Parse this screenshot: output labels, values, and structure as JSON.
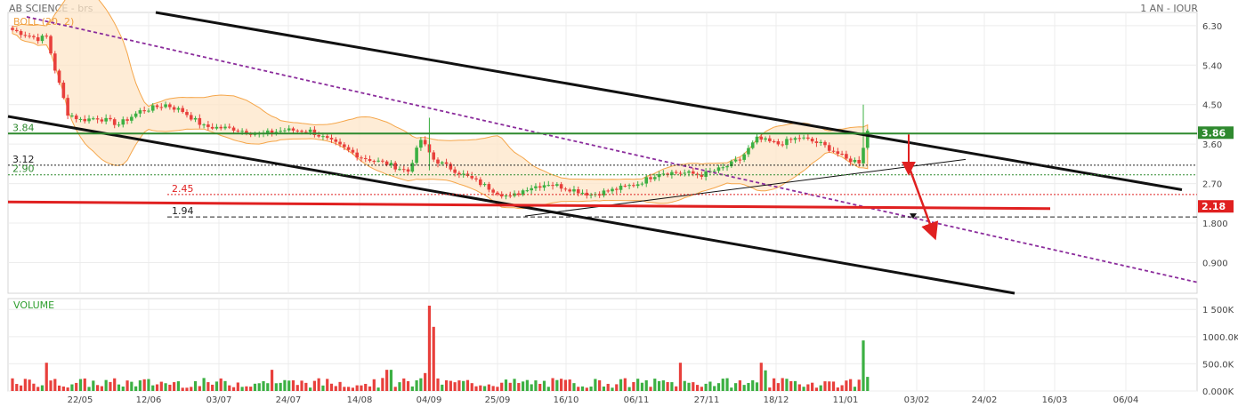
{
  "header": {
    "instrument": "AB SCIENCE - brs",
    "period": "1 AN - JOUR",
    "indicator": "BOLL (20, 2)"
  },
  "volume_label": "VOLUME",
  "colors": {
    "up": "#3cb043",
    "down": "#e8403c",
    "band_fill": "#fde6c8",
    "band_line": "#f5a64a",
    "resistance": "#2f8a2f",
    "support_red": "#e02020",
    "trend_purple": "#8b2c9c",
    "channel": "#111111"
  },
  "chart_data": [
    {
      "type": "candlestick",
      "title": "AB SCIENCE - brs",
      "x_ticks": [
        "22/05",
        "12/06",
        "03/07",
        "24/07",
        "14/08",
        "04/09",
        "25/09",
        "16/10",
        "06/11",
        "27/11",
        "18/12",
        "11/01",
        "03/02",
        "24/02",
        "16/03",
        "06/04"
      ],
      "y_ticks": [
        "6.30",
        "5.40",
        "4.50",
        "3.60",
        "2.70",
        "1.800",
        "0.900"
      ],
      "ylim": [
        0.2,
        6.6
      ],
      "price_tags": [
        {
          "value": 3.86,
          "label": "3.86",
          "color": "#2f8a2f"
        },
        {
          "value": 2.18,
          "label": "2.18",
          "color": "#e02020"
        }
      ],
      "levels": [
        {
          "label": "3.84",
          "value": 3.84,
          "color": "#2f8a2f",
          "style": "solid"
        },
        {
          "label": "3.12",
          "value": 3.12,
          "color": "#222222",
          "style": "dotted"
        },
        {
          "label": "2.90",
          "value": 2.9,
          "color": "#2f8a2f",
          "style": "dotted"
        },
        {
          "label": "2.45",
          "value": 2.45,
          "color": "#e02020",
          "style": "dotted"
        },
        {
          "label": "1.94",
          "value": 1.94,
          "color": "#222222",
          "style": "dashed"
        }
      ],
      "grid": true,
      "legend": "top-left"
    },
    {
      "type": "bar",
      "title": "VOLUME",
      "y_ticks": [
        "1 500K",
        "1000.0K",
        "500.0K",
        "0.000K"
      ],
      "ylim": [
        0,
        1700
      ]
    }
  ]
}
